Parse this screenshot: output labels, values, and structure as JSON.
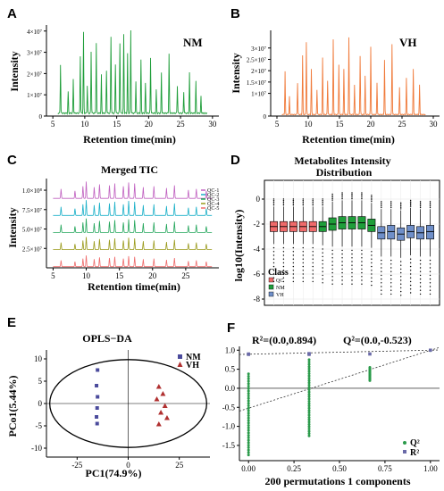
{
  "colors": {
    "nm": "#1f9e3a",
    "vh": "#f07a3a",
    "qc": "#ef6a6a",
    "vh_box": "#6f8fc9",
    "pca_nm": "#4b4b9c",
    "pca_vh": "#b03030",
    "perm_r2": "#6a6aa8",
    "perm_q2": "#2a9a4a",
    "tic_stack": [
      "#ef6a6a",
      "#9a9a1a",
      "#22a55a",
      "#1ab0c8",
      "#c060c0"
    ]
  },
  "chart_data": [
    {
      "panel": "A",
      "type": "line",
      "group_label": "NM",
      "xlabel": "Retention time(min)",
      "ylabel": "Intensity",
      "xlim": [
        4,
        31
      ],
      "ylim": [
        0,
        42000000.0
      ],
      "x_ticks": [
        5,
        10,
        15,
        20,
        25,
        30
      ],
      "y_ticks": [
        {
          "v": 0,
          "label": "0"
        },
        {
          "v": 10000000.0,
          "label": "1×10⁷"
        },
        {
          "v": 20000000.0,
          "label": "2×10⁷"
        },
        {
          "v": 30000000.0,
          "label": "3×10⁷"
        },
        {
          "v": 40000000.0,
          "label": "4×10⁷"
        }
      ],
      "baseline": 1000000.0,
      "peaks": [
        [
          6.2,
          23000000.0
        ],
        [
          7.4,
          10000000.0
        ],
        [
          8.2,
          16000000.0
        ],
        [
          9.3,
          27000000.0
        ],
        [
          9.8,
          38000000.0
        ],
        [
          10.4,
          13000000.0
        ],
        [
          11.0,
          29000000.0
        ],
        [
          11.8,
          33000000.0
        ],
        [
          12.6,
          18000000.0
        ],
        [
          13.4,
          20000000.0
        ],
        [
          14.1,
          36000000.0
        ],
        [
          14.8,
          23000000.0
        ],
        [
          15.5,
          33000000.0
        ],
        [
          16.1,
          37000000.0
        ],
        [
          16.7,
          28000000.0
        ],
        [
          17.2,
          39000000.0
        ],
        [
          18.0,
          15000000.0
        ],
        [
          18.8,
          25000000.0
        ],
        [
          19.5,
          14000000.0
        ],
        [
          20.3,
          26000000.0
        ],
        [
          21.2,
          11000000.0
        ],
        [
          22.0,
          19000000.0
        ],
        [
          23.2,
          28000000.0
        ],
        [
          24.5,
          13000000.0
        ],
        [
          25.5,
          10000000.0
        ],
        [
          26.4,
          19000000.0
        ],
        [
          27.4,
          15000000.0
        ],
        [
          28.2,
          8000000.0
        ]
      ]
    },
    {
      "panel": "B",
      "type": "line",
      "group_label": "VH",
      "xlabel": "Retention time(min)",
      "ylabel": "Intensity",
      "xlim": [
        4,
        31
      ],
      "ylim": [
        0,
        37000000.0
      ],
      "x_ticks": [
        5,
        10,
        15,
        20,
        25,
        30
      ],
      "y_ticks": [
        {
          "v": 0,
          "label": "0"
        },
        {
          "v": 10000000.0,
          "label": "1×10⁷"
        },
        {
          "v": 15000000.0,
          "label": "1.5×10⁷"
        },
        {
          "v": 20000000.0,
          "label": "2×10⁷"
        },
        {
          "v": 25000000.0,
          "label": "2.5×10⁷"
        },
        {
          "v": 30000000.0,
          "label": "3×10⁷"
        }
      ],
      "baseline": 500000.0,
      "peaks": [
        [
          6.3,
          19000000.0
        ],
        [
          7.0,
          8000000.0
        ],
        [
          8.3,
          14000000.0
        ],
        [
          9.1,
          26000000.0
        ],
        [
          9.7,
          32000000.0
        ],
        [
          10.5,
          20000000.0
        ],
        [
          11.4,
          11000000.0
        ],
        [
          12.3,
          25000000.0
        ],
        [
          13.1,
          15000000.0
        ],
        [
          14.0,
          33000000.0
        ],
        [
          14.9,
          22000000.0
        ],
        [
          15.7,
          20000000.0
        ],
        [
          16.5,
          34000000.0
        ],
        [
          17.4,
          13000000.0
        ],
        [
          18.3,
          26000000.0
        ],
        [
          19.1,
          17000000.0
        ],
        [
          20.0,
          30000000.0
        ],
        [
          21.0,
          14000000.0
        ],
        [
          22.2,
          24000000.0
        ],
        [
          23.4,
          31000000.0
        ],
        [
          24.6,
          12000000.0
        ],
        [
          25.7,
          16000000.0
        ],
        [
          26.8,
          20000000.0
        ],
        [
          27.8,
          13000000.0
        ]
      ]
    },
    {
      "panel": "C",
      "type": "line",
      "title": "Merged TIC",
      "xlabel": "Retention time(min)",
      "ylabel": "Intensity",
      "xlim": [
        4,
        30
      ],
      "ylim": [
        0,
        115000000.0
      ],
      "x_ticks": [
        5,
        10,
        15,
        20,
        25
      ],
      "y_ticks": [
        {
          "v": 25000000.0,
          "label": "2.5×10⁷"
        },
        {
          "v": 50000000.0,
          "label": "5.0×10⁷"
        },
        {
          "v": 75000000.0,
          "label": "7.5×10⁷"
        },
        {
          "v": 100000000.0,
          "label": "1.0×10⁸"
        }
      ],
      "legend": [
        "QC-1",
        "QC-2",
        "QC-3",
        "QC-4",
        "QC-5"
      ],
      "offsets": [
        0,
        22000000.0,
        44000000.0,
        66000000.0,
        88000000.0
      ],
      "peak_times": [
        6.2,
        8.3,
        9.5,
        10.0,
        11.2,
        12.0,
        13.5,
        14.3,
        15.6,
        16.4,
        17.3,
        18.6,
        20.2,
        22.1,
        23.3,
        25.4,
        26.6,
        28.1
      ],
      "peak_heights": [
        10000000.0,
        8000000.0,
        13000000.0,
        18000000.0,
        12000000.0,
        15000000.0,
        14000000.0,
        16000000.0,
        13000000.0,
        17000000.0,
        16000000.0,
        12000000.0,
        13000000.0,
        11000000.0,
        14000000.0,
        9000000.0,
        10000000.0,
        8000000.0
      ]
    },
    {
      "panel": "D",
      "type": "box",
      "title": "Metabolites Intensity Distribution",
      "ylabel": "log10(Intensity)",
      "ylim": [
        -8.5,
        1.5
      ],
      "y_ticks": [
        0,
        -2,
        -4,
        -6,
        -8
      ],
      "legend_title": "Class",
      "legend": [
        "QC",
        "NM",
        "VH"
      ],
      "boxes": [
        {
          "class": "QC",
          "q1": -2.6,
          "median": -2.2,
          "q3": -1.8,
          "lo": -3.6,
          "hi": -0.6
        },
        {
          "class": "QC",
          "q1": -2.6,
          "median": -2.2,
          "q3": -1.8,
          "lo": -3.6,
          "hi": -0.6
        },
        {
          "class": "QC",
          "q1": -2.6,
          "median": -2.2,
          "q3": -1.8,
          "lo": -3.6,
          "hi": -0.6
        },
        {
          "class": "QC",
          "q1": -2.6,
          "median": -2.2,
          "q3": -1.8,
          "lo": -3.6,
          "hi": -0.6
        },
        {
          "class": "QC",
          "q1": -2.6,
          "median": -2.2,
          "q3": -1.8,
          "lo": -3.6,
          "hi": -0.6
        },
        {
          "class": "NM",
          "q1": -2.6,
          "median": -2.2,
          "q3": -1.8,
          "lo": -3.7,
          "hi": -0.6
        },
        {
          "class": "NM",
          "q1": -2.5,
          "median": -2.0,
          "q3": -1.5,
          "lo": -3.8,
          "hi": -0.2
        },
        {
          "class": "NM",
          "q1": -2.4,
          "median": -1.9,
          "q3": -1.4,
          "lo": -3.8,
          "hi": -0.1
        },
        {
          "class": "NM",
          "q1": -2.4,
          "median": -1.9,
          "q3": -1.4,
          "lo": -3.8,
          "hi": -0.1
        },
        {
          "class": "NM",
          "q1": -2.4,
          "median": -1.9,
          "q3": -1.4,
          "lo": -3.8,
          "hi": -0.1
        },
        {
          "class": "NM",
          "q1": -2.6,
          "median": -2.1,
          "q3": -1.6,
          "lo": -3.9,
          "hi": -0.3
        },
        {
          "class": "VH",
          "q1": -3.2,
          "median": -2.7,
          "q3": -2.2,
          "lo": -4.6,
          "hi": -0.8
        },
        {
          "class": "VH",
          "q1": -3.2,
          "median": -2.6,
          "q3": -2.1,
          "lo": -4.6,
          "hi": -0.8
        },
        {
          "class": "VH",
          "q1": -3.3,
          "median": -2.8,
          "q3": -2.3,
          "lo": -4.7,
          "hi": -0.9
        },
        {
          "class": "VH",
          "q1": -3.1,
          "median": -2.6,
          "q3": -2.1,
          "lo": -4.5,
          "hi": -0.7
        },
        {
          "class": "VH",
          "q1": -3.2,
          "median": -2.7,
          "q3": -2.2,
          "lo": -4.6,
          "hi": -0.8
        },
        {
          "class": "VH",
          "q1": -3.2,
          "median": -2.6,
          "q3": -2.1,
          "lo": -4.6,
          "hi": -0.8
        }
      ]
    },
    {
      "panel": "E",
      "type": "scatter",
      "title": "OPLS−DA",
      "xlabel": "PC1(74.9%)",
      "ylabel": "PCo1(5.44%)",
      "xlim": [
        -40,
        40
      ],
      "ylim": [
        -12,
        12
      ],
      "x_ticks": [
        -25,
        0,
        25
      ],
      "y_ticks": [
        10,
        5,
        0,
        -5,
        -10
      ],
      "legend": [
        "NM",
        "VH"
      ],
      "series": [
        {
          "name": "NM",
          "points": [
            [
              -15,
              7.5
            ],
            [
              -15.5,
              4.0
            ],
            [
              -15,
              1.5
            ],
            [
              -15.2,
              -1.0
            ],
            [
              -15.5,
              -3.0
            ],
            [
              -15.2,
              -4.5
            ]
          ]
        },
        {
          "name": "VH",
          "points": [
            [
              15,
              3.8
            ],
            [
              17,
              2.2
            ],
            [
              14,
              1.0
            ],
            [
              18,
              -0.5
            ],
            [
              16,
              -2.0
            ],
            [
              19,
              -3.2
            ],
            [
              15,
              -4.6
            ]
          ]
        }
      ]
    },
    {
      "panel": "F",
      "type": "scatter",
      "annotation_r2": "R²=(0.0,0.894)",
      "annotation_q2": "Q²=(0.0,-0.523)",
      "xlabel": "200 permutations 1 components",
      "xlim": [
        -0.05,
        1.05
      ],
      "ylim": [
        -1.9,
        1.1
      ],
      "x_ticks": [
        0.0,
        0.25,
        0.5,
        0.75,
        1.0
      ],
      "x_tick_labels": [
        "0.00",
        "0.25",
        "0.50",
        "0.75",
        "1.00"
      ],
      "y_ticks": [
        1.0,
        0.5,
        0.0,
        -0.5,
        -1.0,
        -1.5
      ],
      "y_tick_labels": [
        "1.0",
        "0.5",
        "0.0",
        "-0.5",
        "-1.0",
        "-1.5"
      ],
      "legend": [
        "Q²",
        "R²"
      ],
      "r2_line": {
        "intercept": 0.894,
        "slope": 0.106
      },
      "q2_line": {
        "intercept": -0.523,
        "slope": 1.52
      },
      "r2_points": [
        [
          0.0,
          0.89
        ],
        [
          0.0,
          0.9
        ],
        [
          0.333,
          0.89
        ],
        [
          0.333,
          0.91
        ],
        [
          0.667,
          0.9
        ],
        [
          1.0,
          1.0
        ]
      ],
      "q2_columns": [
        {
          "x": 0.0,
          "min": -1.75,
          "max": 0.38
        },
        {
          "x": 0.333,
          "min": -1.25,
          "max": 0.75
        },
        {
          "x": 0.667,
          "min": 0.2,
          "max": 0.55
        }
      ],
      "q2_top": [
        1.0,
        0.99
      ]
    }
  ]
}
